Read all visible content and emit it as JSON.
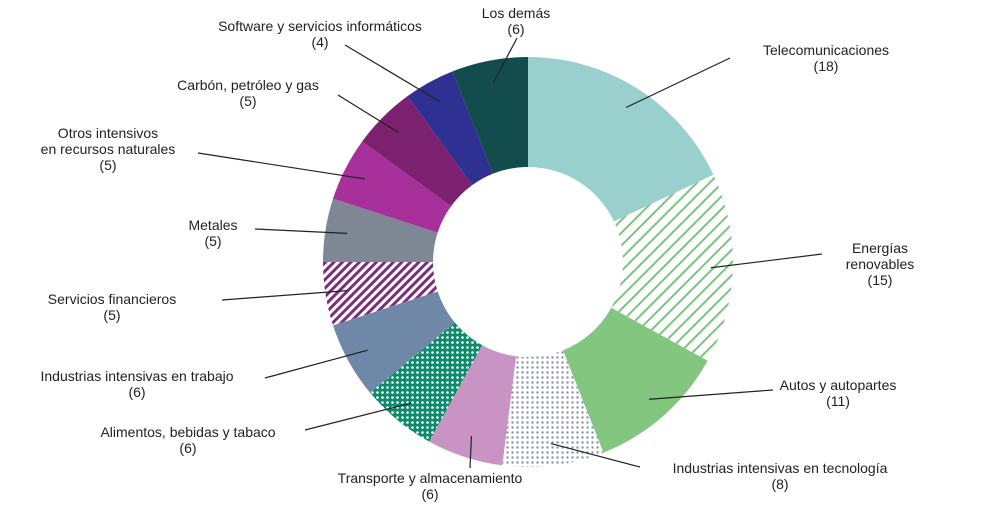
{
  "chart_data": {
    "type": "donut",
    "categories": [
      "Telecomunicaciones",
      "Energías renovables",
      "Autos y autopartes",
      "Industrias intensivas en tecnología",
      "Transporte y almacenamiento",
      "Alimentos, bebidas y tabaco",
      "Industrias intensivas en trabajo",
      "Servicios financieros",
      "Metales",
      "Otros intensivos\nen recursos naturales",
      "Carbón, petróleo y gas",
      "Software y servicios informáticos",
      "Los demás"
    ],
    "values": [
      18,
      15,
      11,
      8,
      6,
      6,
      6,
      5,
      5,
      5,
      5,
      4,
      6
    ],
    "value_labels": [
      "(18)",
      "(15)",
      "(11)",
      "(8)",
      "(6)",
      "(6)",
      "(6)",
      "(5)",
      "(5)",
      "(5)",
      "(5)",
      "(4)",
      "(6)"
    ],
    "colors": [
      "#99cfcc",
      "#7cc47e",
      "#82c67f",
      "#8a93a6",
      "#c994c4",
      "#0e8a6c",
      "#7088a8",
      "#7a2c78",
      "#7f8794",
      "#a8309a",
      "#7c2070",
      "#2f3192",
      "#134c4c"
    ],
    "patterns": [
      null,
      "hatch",
      null,
      "dots",
      null,
      "dots-inverse",
      null,
      "hatch",
      null,
      null,
      null,
      null,
      null
    ]
  }
}
